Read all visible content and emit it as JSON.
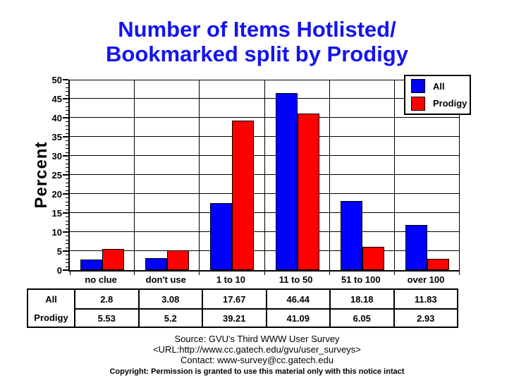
{
  "title": {
    "line1": "Number of Items Hotlisted/",
    "line2": "Bookmarked split by Prodigy",
    "color": "#1414f0"
  },
  "chart_data": {
    "type": "bar",
    "title": "Number of Items Hotlisted/Bookmarked split by Prodigy",
    "xlabel": "",
    "ylabel": "Percent",
    "ylim": [
      0,
      50
    ],
    "y_ticks": [
      0,
      5,
      10,
      15,
      20,
      25,
      30,
      35,
      40,
      45,
      50
    ],
    "grid": true,
    "legend_position": "top-right",
    "categories": [
      "no clue",
      "don't use",
      "1 to 10",
      "11 to 50",
      "51 to 100",
      "over 100"
    ],
    "series": [
      {
        "name": "All",
        "color": "#0000ff",
        "values": [
          2.8,
          3.08,
          17.67,
          46.44,
          18.18,
          11.83
        ]
      },
      {
        "name": "Prodigy",
        "color": "#ff0000",
        "values": [
          5.53,
          5.2,
          39.21,
          41.09,
          6.05,
          2.93
        ]
      }
    ]
  },
  "legend": {
    "items": [
      {
        "label": "All",
        "color": "#0000ff"
      },
      {
        "label": "Prodigy",
        "color": "#ff0000"
      }
    ]
  },
  "table": {
    "rows": [
      {
        "label": "All",
        "values": [
          "2.8",
          "3.08",
          "17.67",
          "46.44",
          "18.18",
          "11.83"
        ]
      },
      {
        "label": "Prodigy",
        "values": [
          "5.53",
          "5.2",
          "39.21",
          "41.09",
          "6.05",
          "2.93"
        ]
      }
    ]
  },
  "footer": {
    "source": "Source: GVU's Third WWW User Survey",
    "url": "<URL:http://www.cc.gatech.edu/gvu/user_surveys>",
    "contact": "Contact: www-survey@cc.gatech.edu",
    "copyright": "Copyright: Permission is granted to use this material only with this notice intact"
  }
}
